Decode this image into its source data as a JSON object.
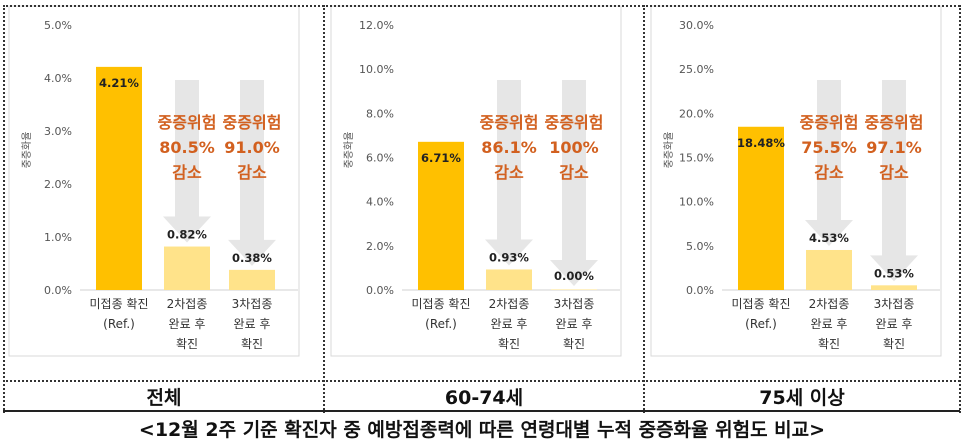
{
  "chart_data": [
    {
      "type": "bar",
      "group_label": "전체",
      "ylabel": "중증화율",
      "ylim": [
        0,
        5
      ],
      "yticks": [
        "0.0%",
        "1.0%",
        "2.0%",
        "3.0%",
        "4.0%",
        "5.0%"
      ],
      "categories": [
        [
          "미접종 확진",
          "(Ref.)"
        ],
        [
          "2차접종",
          "완료 후",
          "확진"
        ],
        [
          "3차접종",
          "완료 후",
          "확진"
        ]
      ],
      "values": [
        4.21,
        0.82,
        0.38
      ],
      "value_labels": [
        "4.21%",
        "0.82%",
        "0.38%"
      ],
      "annotations": [
        {
          "bar": 1,
          "lines": [
            "중증위험",
            "80.5%",
            "감소"
          ]
        },
        {
          "bar": 2,
          "lines": [
            "중증위험",
            "91.0%",
            "감소"
          ]
        }
      ]
    },
    {
      "type": "bar",
      "group_label": "60-74세",
      "ylabel": "중증화율",
      "ylim": [
        0,
        12
      ],
      "yticks": [
        "0.0%",
        "2.0%",
        "4.0%",
        "6.0%",
        "8.0%",
        "10.0%",
        "12.0%"
      ],
      "categories": [
        [
          "미접종 확진",
          "(Ref.)"
        ],
        [
          "2차접종",
          "완료 후",
          "확진"
        ],
        [
          "3차접종",
          "완료 후",
          "확진"
        ]
      ],
      "values": [
        6.71,
        0.93,
        0.0
      ],
      "value_labels": [
        "6.71%",
        "0.93%",
        "0.00%"
      ],
      "annotations": [
        {
          "bar": 1,
          "lines": [
            "중증위험",
            "86.1%",
            "감소"
          ]
        },
        {
          "bar": 2,
          "lines": [
            "중증위험",
            "100%",
            "감소"
          ]
        }
      ]
    },
    {
      "type": "bar",
      "group_label": "75세 이상",
      "ylabel": "중증화율",
      "ylim": [
        0,
        30
      ],
      "yticks": [
        "0.0%",
        "5.0%",
        "10.0%",
        "15.0%",
        "20.0%",
        "25.0%",
        "30.0%"
      ],
      "categories": [
        [
          "미접종 확진",
          "(Ref.)"
        ],
        [
          "2차접종",
          "완료 후",
          "확진"
        ],
        [
          "3차접종",
          "완료 후",
          "확진"
        ]
      ],
      "values": [
        18.48,
        4.53,
        0.53
      ],
      "value_labels": [
        "18.48%",
        "4.53%",
        "0.53%"
      ],
      "annotations": [
        {
          "bar": 1,
          "lines": [
            "중증위험",
            "75.5%",
            "감소"
          ]
        },
        {
          "bar": 2,
          "lines": [
            "중증위험",
            "97.1%",
            "감소"
          ]
        }
      ]
    }
  ],
  "caption": "<12월 2주 기준 확진자 중 예방접종력에 따른 연령대별 누적 중증화율 위험도 비교>",
  "colors": {
    "ref_bar": "#ffc000",
    "vacc_bar": "#ffe38a",
    "arrow": "#e6e6e6",
    "annotation": "#d2601f",
    "panel_border": "#d9d9d9"
  }
}
